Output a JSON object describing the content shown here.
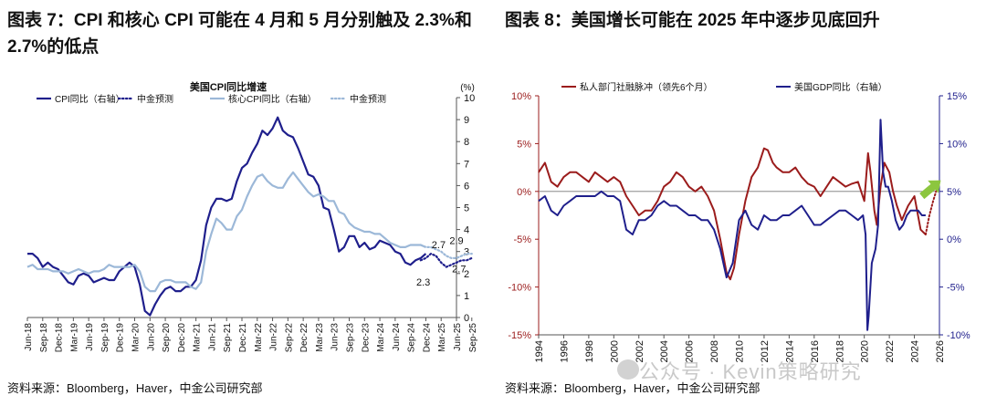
{
  "left": {
    "title": "图表 7：CPI 和核心 CPI 可能在 4 月和 5 月分别触及 2.3%和 2.7%的低点",
    "source": "资料来源：Bloomberg，Haver，中金公司研究部",
    "chart_data": {
      "type": "line",
      "title": "美国CPI同比增速",
      "unit_label": "(%)",
      "y_axis_side": "right",
      "ylim": [
        0,
        10
      ],
      "yticks": [
        0,
        1,
        2,
        3,
        4,
        5,
        6,
        7,
        8,
        9,
        10
      ],
      "xlim": [
        0,
        84
      ],
      "x_tick_labels": [
        "Jun-18",
        "Sep-18",
        "Dec-18",
        "Mar-19",
        "Jun-19",
        "Sep-19",
        "Dec-19",
        "Mar-20",
        "Jun-20",
        "Sep-20",
        "Dec-20",
        "Mar-21",
        "Jun-21",
        "Sep-21",
        "Dec-21",
        "Mar-22",
        "Jun-22",
        "Sep-22",
        "Dec-22",
        "Mar-23",
        "Jun-23",
        "Sep-23",
        "Dec-23",
        "Mar-24",
        "Jun-24",
        "Sep-24",
        "Dec-24",
        "Mar-25",
        "Jun-25",
        "Sep-25"
      ],
      "legend": [
        "CPI同比（右轴）",
        "中金预测",
        "核心CPI同比（右轴）",
        "中金预测"
      ],
      "series": [
        {
          "name": "CPI同比（右轴）",
          "color": "#1f1f8c",
          "style": "solid",
          "width": 2.2,
          "values": [
            2.9,
            2.9,
            2.7,
            2.3,
            2.5,
            2.3,
            2.2,
            1.9,
            1.6,
            1.5,
            1.9,
            2.0,
            1.9,
            1.6,
            1.7,
            1.8,
            1.7,
            1.7,
            2.1,
            2.3,
            2.5,
            2.3,
            1.5,
            0.3,
            0.1,
            0.6,
            1.0,
            1.3,
            1.4,
            1.2,
            1.2,
            1.4,
            1.4,
            1.7,
            2.6,
            4.2,
            5.0,
            5.4,
            5.4,
            5.3,
            5.4,
            6.2,
            6.8,
            7.0,
            7.5,
            7.9,
            8.5,
            8.3,
            8.6,
            9.1,
            8.5,
            8.3,
            8.2,
            7.7,
            7.1,
            6.5,
            6.4,
            6.0,
            5.0,
            4.9,
            4.0,
            3.0,
            3.2,
            3.7,
            3.7,
            3.2,
            3.4,
            3.1,
            3.2,
            3.5,
            3.4,
            3.3,
            3.0,
            2.9,
            2.5,
            2.4,
            2.6,
            2.7,
            2.9
          ]
        },
        {
          "name": "中金预测",
          "color": "#1f1f8c",
          "style": "dotted",
          "width": 2.2,
          "start_index": 77,
          "values": [
            2.6,
            2.7,
            2.9,
            2.8,
            2.5,
            2.3,
            2.4,
            2.5,
            2.6,
            2.6,
            2.7
          ]
        },
        {
          "name": "核心CPI同比（右轴）",
          "color": "#9cb8d8",
          "style": "solid",
          "width": 2.2,
          "values": [
            2.3,
            2.4,
            2.2,
            2.2,
            2.2,
            2.1,
            2.1,
            2.1,
            2.0,
            2.1,
            2.2,
            2.1,
            2.0,
            2.1,
            2.1,
            2.2,
            2.4,
            2.3,
            2.3,
            2.3,
            2.3,
            2.4,
            2.1,
            1.4,
            1.2,
            1.2,
            1.6,
            1.7,
            1.7,
            1.6,
            1.6,
            1.6,
            1.4,
            1.3,
            1.6,
            3.0,
            3.8,
            4.5,
            4.3,
            4.0,
            4.0,
            4.6,
            4.9,
            5.5,
            6.0,
            6.4,
            6.5,
            6.2,
            6.0,
            5.9,
            5.9,
            6.3,
            6.6,
            6.3,
            6.0,
            5.7,
            5.5,
            5.6,
            5.5,
            5.3,
            5.3,
            4.8,
            4.7,
            4.3,
            4.1,
            4.0,
            3.9,
            3.9,
            3.8,
            3.8,
            3.6,
            3.4,
            3.3,
            3.2,
            3.2,
            3.3,
            3.3,
            3.3,
            3.2
          ]
        },
        {
          "name": "中金预测",
          "color": "#9cb8d8",
          "style": "dotted",
          "width": 2.2,
          "start_index": 77,
          "values": [
            3.3,
            3.2,
            3.2,
            3.1,
            3.0,
            2.8,
            2.7,
            2.7,
            2.8,
            2.9,
            2.9
          ]
        }
      ],
      "annotations": [
        {
          "text": "2.7",
          "x": 80.5,
          "y": 3.15
        },
        {
          "text": "2.9",
          "x": 84,
          "y": 3.35
        },
        {
          "text": "2.3",
          "x": 77.5,
          "y": 1.45
        },
        {
          "text": "2.7",
          "x": 84.5,
          "y": 2.05
        }
      ]
    }
  },
  "right": {
    "title": "图表 8：美国增长可能在 2025 年中逐步见底回升",
    "source": "资料来源：Bloomberg，Haver，中金公司研究部",
    "chart_data": {
      "type": "line",
      "xlim": [
        1994,
        2026
      ],
      "x_tick_labels": [
        "1994",
        "1996",
        "1998",
        "2000",
        "2002",
        "2004",
        "2006",
        "2008",
        "2010",
        "2012",
        "2014",
        "2016",
        "2018",
        "2020",
        "2022",
        "2024",
        "2026"
      ],
      "left_axis": {
        "ylim": [
          -15,
          10
        ],
        "ticks": [
          -15,
          -10,
          -5,
          0,
          5,
          10
        ],
        "tick_labels": [
          "-15%",
          "-10%",
          "-5%",
          "0%",
          "5%",
          "10%"
        ],
        "color": "#9b1c1c"
      },
      "right_axis": {
        "ylim": [
          -10,
          15
        ],
        "ticks": [
          -10,
          -5,
          0,
          5,
          10,
          15
        ],
        "tick_labels": [
          "-10%",
          "-5%",
          "0%",
          "5%",
          "10%",
          "15%"
        ],
        "color": "#1f1f8c"
      },
      "legend": [
        "私人部门社融脉冲（领先6个月）",
        "美国GDP同比（右轴）"
      ],
      "series": [
        {
          "name": "私人部门社融脉冲（领先6个月）",
          "axis": "left",
          "color": "#9b1c1c",
          "style": "solid",
          "width": 2,
          "x": [
            1994,
            1994.5,
            1995,
            1995.5,
            1996,
            1996.5,
            1997,
            1997.5,
            1998,
            1998.5,
            1999,
            1999.5,
            2000,
            2000.5,
            2001,
            2001.5,
            2002,
            2002.5,
            2003,
            2003.5,
            2004,
            2004.5,
            2005,
            2005.5,
            2006,
            2006.5,
            2007,
            2007.5,
            2008,
            2008.5,
            2009,
            2009.3,
            2009.6,
            2010,
            2010.5,
            2011,
            2011.5,
            2012,
            2012.3,
            2012.7,
            2013,
            2013.5,
            2014,
            2014.5,
            2015,
            2015.5,
            2016,
            2016.5,
            2017,
            2017.5,
            2018,
            2018.5,
            2019,
            2019.5,
            2020,
            2020.3,
            2020.5,
            2020.8,
            2021,
            2021.3,
            2021.6,
            2022,
            2022.3,
            2022.6,
            2023,
            2023.5,
            2024,
            2024.5,
            2024.9
          ],
          "y": [
            2.0,
            3.0,
            1.0,
            0.5,
            1.5,
            2.0,
            2.0,
            1.5,
            1.0,
            2.0,
            1.5,
            1.0,
            1.5,
            1.0,
            -0.5,
            -1.5,
            -2.5,
            -2.0,
            -2.0,
            -1.0,
            0.5,
            1.0,
            2.0,
            1.5,
            0.5,
            0.0,
            0.5,
            -0.5,
            -2.0,
            -5.0,
            -8.5,
            -9.2,
            -8.0,
            -4.5,
            -1.0,
            1.5,
            2.5,
            4.5,
            4.3,
            3.0,
            2.5,
            2.0,
            2.0,
            2.5,
            1.5,
            0.8,
            0.5,
            -0.5,
            0.5,
            1.5,
            1.0,
            0.5,
            0.8,
            1.0,
            -1.0,
            4.0,
            2.0,
            -2.0,
            -3.5,
            0.5,
            3.0,
            2.0,
            0.0,
            -1.5,
            -3.0,
            -1.5,
            -0.5,
            -4.0,
            -4.5
          ]
        },
        {
          "name": "私人部门社融脉冲预测",
          "axis": "left",
          "color": "#9b1c1c",
          "style": "dotted",
          "width": 2,
          "x": [
            2024.9,
            2025.2,
            2025.5,
            2025.8,
            2026
          ],
          "y": [
            -4.5,
            -2.5,
            -1.0,
            0.3,
            1.0
          ]
        },
        {
          "name": "美国GDP同比（右轴）",
          "axis": "right",
          "color": "#1f1f8c",
          "style": "solid",
          "width": 2,
          "x": [
            1994,
            1994.5,
            1995,
            1995.5,
            1996,
            1996.5,
            1997,
            1997.5,
            1998,
            1998.5,
            1999,
            1999.5,
            2000,
            2000.5,
            2001,
            2001.5,
            2002,
            2002.5,
            2003,
            2003.5,
            2004,
            2004.5,
            2005,
            2005.5,
            2006,
            2006.5,
            2007,
            2007.5,
            2008,
            2008.5,
            2009,
            2009.5,
            2010,
            2010.5,
            2011,
            2011.5,
            2012,
            2012.5,
            2013,
            2013.5,
            2014,
            2014.5,
            2015,
            2015.5,
            2016,
            2016.5,
            2017,
            2017.5,
            2018,
            2018.5,
            2019,
            2019.5,
            2019.9,
            2020.1,
            2020.25,
            2020.35,
            2020.6,
            2020.9,
            2021.1,
            2021.3,
            2021.5,
            2021.7,
            2021.9,
            2022.2,
            2022.5,
            2022.8,
            2023.1,
            2023.4,
            2023.7,
            2024,
            2024.3,
            2024.6,
            2024.9
          ],
          "y": [
            4.0,
            4.5,
            3.0,
            2.5,
            3.5,
            4.0,
            4.5,
            4.5,
            4.5,
            4.5,
            5.0,
            4.5,
            4.5,
            4.0,
            1.0,
            0.5,
            2.0,
            2.0,
            2.5,
            3.5,
            4.0,
            3.5,
            3.5,
            3.0,
            2.5,
            2.5,
            2.0,
            2.0,
            1.0,
            -1.0,
            -4.0,
            -2.5,
            2.0,
            3.0,
            1.5,
            1.0,
            2.5,
            2.0,
            2.0,
            2.5,
            2.5,
            3.0,
            3.5,
            2.5,
            1.5,
            1.5,
            2.0,
            2.5,
            3.0,
            3.0,
            2.5,
            2.0,
            2.5,
            0.5,
            -9.5,
            -8.0,
            -2.5,
            -1.0,
            1.5,
            12.5,
            7.0,
            5.5,
            5.5,
            4.0,
            2.0,
            1.0,
            1.5,
            2.5,
            3.0,
            3.0,
            3.0,
            2.5,
            2.5
          ]
        }
      ],
      "arrow_color": "#8cc63f"
    }
  },
  "watermark": "公众号 · Kevin策略研究"
}
